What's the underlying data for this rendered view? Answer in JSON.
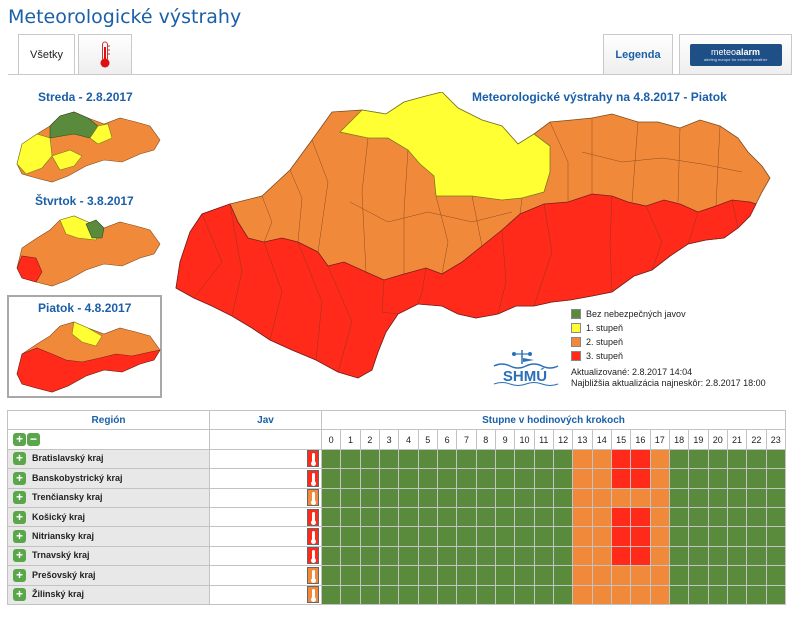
{
  "page": {
    "title": "Meteorologické výstrahy"
  },
  "tabs": {
    "all_label": "Všetky",
    "heat_icon": "thermometer-icon",
    "legend_label": "Legenda"
  },
  "meteoalarm": {
    "brand_a": "meteo",
    "brand_b": "alarm",
    "tagline": "alerting europe for extreme weather"
  },
  "mini_maps": [
    {
      "label": "Streda - 2.8.2017"
    },
    {
      "label": "Štvrtok - 3.8.2017"
    },
    {
      "label": "Piatok - 4.8.2017"
    }
  ],
  "main_map": {
    "title": "Meteorologické výstrahy na 4.8.2017 - Piatok"
  },
  "legend": {
    "items": [
      {
        "label": "Bez nebezpečných javov",
        "color": "#5a8a3c"
      },
      {
        "label": "1. stupeň",
        "color": "#ffff33"
      },
      {
        "label": "2. stupeň",
        "color": "#f08a3a"
      },
      {
        "label": "3. stupeň",
        "color": "#ff2a1a"
      }
    ]
  },
  "shmu": {
    "logo_text": "SHMÚ"
  },
  "update": {
    "updated": "Aktualizované: 2.8.2017 14:04",
    "next": "Najbližšia aktualizácia najneskôr: 2.8.2017 18:00"
  },
  "table": {
    "headers": {
      "region": "Región",
      "jav": "Jav",
      "steps": "Stupne v hodinových krokoch"
    },
    "hours": [
      "0",
      "1",
      "2",
      "3",
      "4",
      "5",
      "6",
      "7",
      "8",
      "9",
      "10",
      "11",
      "12",
      "13",
      "14",
      "15",
      "16",
      "17",
      "18",
      "19",
      "20",
      "21",
      "22",
      "23"
    ],
    "colors": {
      "0": "#5a8a3c",
      "2": "#f08a3a",
      "3": "#ff2a1a"
    },
    "rows": [
      {
        "region": "Bratislavský kraj",
        "jav_level": 3,
        "levels": [
          0,
          0,
          0,
          0,
          0,
          0,
          0,
          0,
          0,
          0,
          0,
          0,
          0,
          2,
          2,
          3,
          3,
          2,
          0,
          0,
          0,
          0,
          0,
          0
        ]
      },
      {
        "region": "Banskobystrický kraj",
        "jav_level": 3,
        "levels": [
          0,
          0,
          0,
          0,
          0,
          0,
          0,
          0,
          0,
          0,
          0,
          0,
          0,
          2,
          2,
          3,
          3,
          2,
          0,
          0,
          0,
          0,
          0,
          0
        ]
      },
      {
        "region": "Trenčiansky kraj",
        "jav_level": 2,
        "levels": [
          0,
          0,
          0,
          0,
          0,
          0,
          0,
          0,
          0,
          0,
          0,
          0,
          0,
          2,
          2,
          2,
          2,
          2,
          0,
          0,
          0,
          0,
          0,
          0
        ]
      },
      {
        "region": "Košický kraj",
        "jav_level": 3,
        "levels": [
          0,
          0,
          0,
          0,
          0,
          0,
          0,
          0,
          0,
          0,
          0,
          0,
          0,
          2,
          2,
          3,
          3,
          2,
          0,
          0,
          0,
          0,
          0,
          0
        ]
      },
      {
        "region": "Nitriansky kraj",
        "jav_level": 3,
        "levels": [
          0,
          0,
          0,
          0,
          0,
          0,
          0,
          0,
          0,
          0,
          0,
          0,
          0,
          2,
          2,
          3,
          3,
          2,
          0,
          0,
          0,
          0,
          0,
          0
        ]
      },
      {
        "region": "Trnavský kraj",
        "jav_level": 3,
        "levels": [
          0,
          0,
          0,
          0,
          0,
          0,
          0,
          0,
          0,
          0,
          0,
          0,
          0,
          2,
          2,
          3,
          3,
          2,
          0,
          0,
          0,
          0,
          0,
          0
        ]
      },
      {
        "region": "Prešovský kraj",
        "jav_level": 2,
        "levels": [
          0,
          0,
          0,
          0,
          0,
          0,
          0,
          0,
          0,
          0,
          0,
          0,
          0,
          2,
          2,
          2,
          2,
          2,
          0,
          0,
          0,
          0,
          0,
          0
        ]
      },
      {
        "region": "Žilinský kraj",
        "jav_level": 2,
        "levels": [
          0,
          0,
          0,
          0,
          0,
          0,
          0,
          0,
          0,
          0,
          0,
          0,
          0,
          2,
          2,
          2,
          2,
          2,
          0,
          0,
          0,
          0,
          0,
          0
        ]
      }
    ]
  }
}
